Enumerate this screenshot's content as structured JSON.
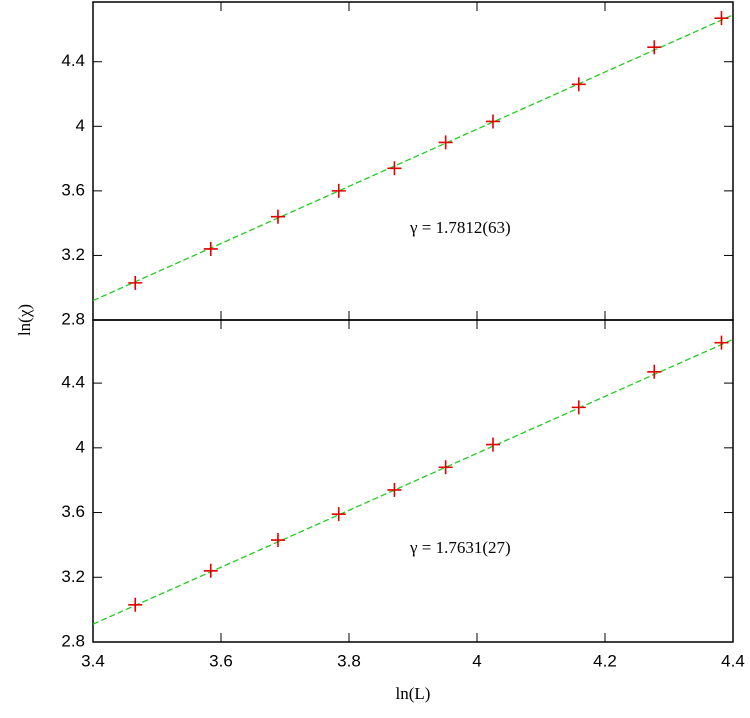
{
  "chart_data": [
    {
      "type": "scatter",
      "ylabel": "ln(χ)",
      "annotation": "γ = 1.7812(63)",
      "xlim": [
        3.4,
        4.4
      ],
      "xticks": [
        3.4,
        3.6,
        3.8,
        4,
        4.2,
        4.4
      ],
      "ylim": [
        2.8,
        4.77
      ],
      "yticks": [
        2.8,
        3.2,
        3.6,
        4,
        4.4
      ],
      "x": [
        3.466,
        3.584,
        3.689,
        3.784,
        3.871,
        3.951,
        4.025,
        4.159,
        4.277,
        4.382
      ],
      "series": [
        {
          "color": "#e00000",
          "values": [
            3.03,
            3.24,
            3.44,
            3.6,
            3.74,
            3.9,
            4.03,
            4.26,
            4.49,
            4.67
          ]
        }
      ],
      "fit": {
        "color": "#22cc22",
        "x": [
          3.4,
          4.4
        ],
        "values": [
          2.92,
          4.69
        ]
      }
    },
    {
      "type": "scatter",
      "xlabel": "ln(L)",
      "annotation": "γ = 1.7631(27)",
      "xlim": [
        3.4,
        4.4
      ],
      "xticks": [
        3.4,
        3.6,
        3.8,
        4,
        4.2,
        4.4
      ],
      "ylim": [
        2.8,
        4.79
      ],
      "yticks": [
        2.8,
        3.2,
        3.6,
        4,
        4.4
      ],
      "x": [
        3.466,
        3.584,
        3.689,
        3.784,
        3.871,
        3.951,
        4.025,
        4.159,
        4.277,
        4.382
      ],
      "series": [
        {
          "color": "#e00000",
          "values": [
            3.03,
            3.24,
            3.43,
            3.59,
            3.74,
            3.88,
            4.02,
            4.25,
            4.47,
            4.65
          ]
        }
      ],
      "fit": {
        "color": "#22cc22",
        "x": [
          3.4,
          4.4
        ],
        "values": [
          2.91,
          4.67
        ]
      }
    }
  ]
}
